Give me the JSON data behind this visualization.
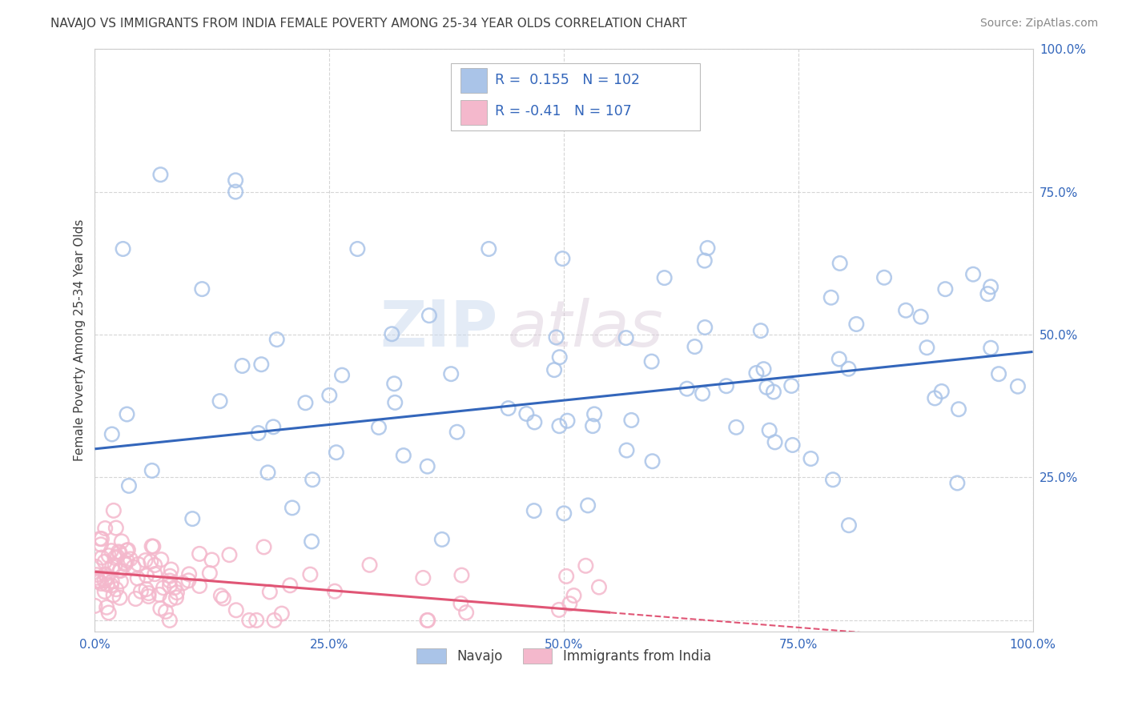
{
  "title": "NAVAJO VS IMMIGRANTS FROM INDIA FEMALE POVERTY AMONG 25-34 YEAR OLDS CORRELATION CHART",
  "source": "Source: ZipAtlas.com",
  "ylabel": "Female Poverty Among 25-34 Year Olds",
  "xlim": [
    0.0,
    1.0
  ],
  "ylim": [
    -0.02,
    1.0
  ],
  "xticks": [
    0.0,
    0.25,
    0.5,
    0.75,
    1.0
  ],
  "yticks": [
    0.0,
    0.25,
    0.5,
    0.75,
    1.0
  ],
  "xticklabels": [
    "0.0%",
    "25.0%",
    "50.0%",
    "75.0%",
    "100.0%"
  ],
  "yticklabels": [
    "",
    "25.0%",
    "50.0%",
    "75.0%",
    "100.0%"
  ],
  "navajo_color": "#aac4e8",
  "india_color": "#f4b8cc",
  "navajo_line_color": "#3366bb",
  "india_line_color": "#e05575",
  "navajo_R": 0.155,
  "navajo_N": 102,
  "india_R": -0.41,
  "india_N": 107,
  "watermark_zip": "ZIP",
  "watermark_atlas": "atlas",
  "legend_navajo": "Navajo",
  "legend_india": "Immigrants from India",
  "background_color": "#ffffff",
  "grid_color": "#cccccc",
  "title_color": "#404040",
  "axis_label_color": "#404040",
  "tick_label_color": "#3366bb",
  "stat_value_color": "#3366bb",
  "navajo_intercept": 0.3,
  "navajo_slope": 0.17,
  "india_intercept": 0.085,
  "india_slope": -0.13
}
